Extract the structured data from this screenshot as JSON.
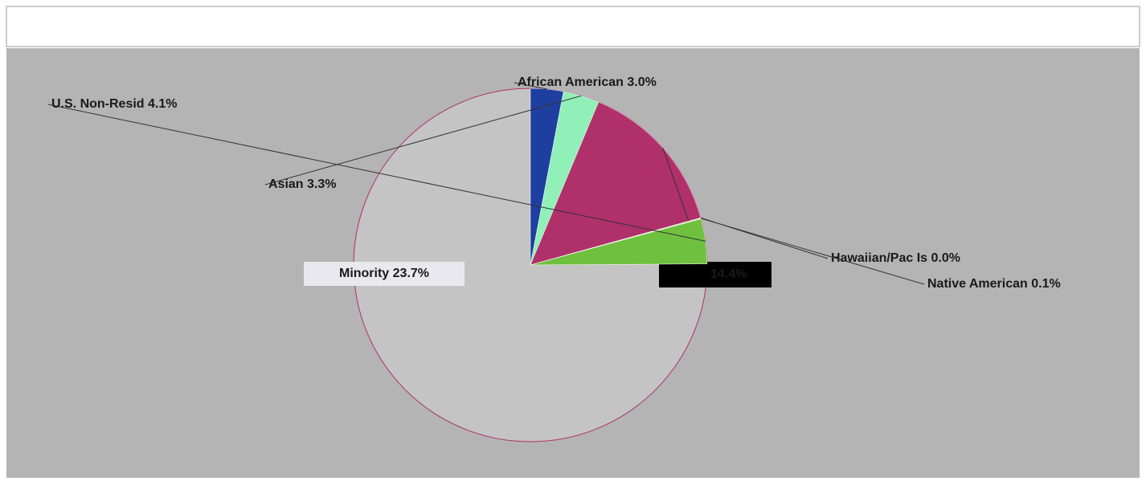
{
  "chart_data": {
    "type": "pie",
    "categories": [
      "African American",
      "Asian",
      null,
      "Hawaiian/Pac Is",
      "Native American",
      "U.S. Non-Resid"
    ],
    "values": [
      3.0,
      3.3,
      14.4,
      0.0,
      0.1,
      4.1
    ],
    "value_labels": [
      "3.0%",
      "3.3%",
      "14.4%",
      "0.0%",
      "0.1%",
      "4.1%"
    ],
    "colors": [
      "#1f3fa0",
      "#90f0b8",
      "#b0306a",
      "#d8a0d8",
      "#c8e6a8",
      "#70c040"
    ],
    "annotation": "Minority 23.7%"
  }
}
